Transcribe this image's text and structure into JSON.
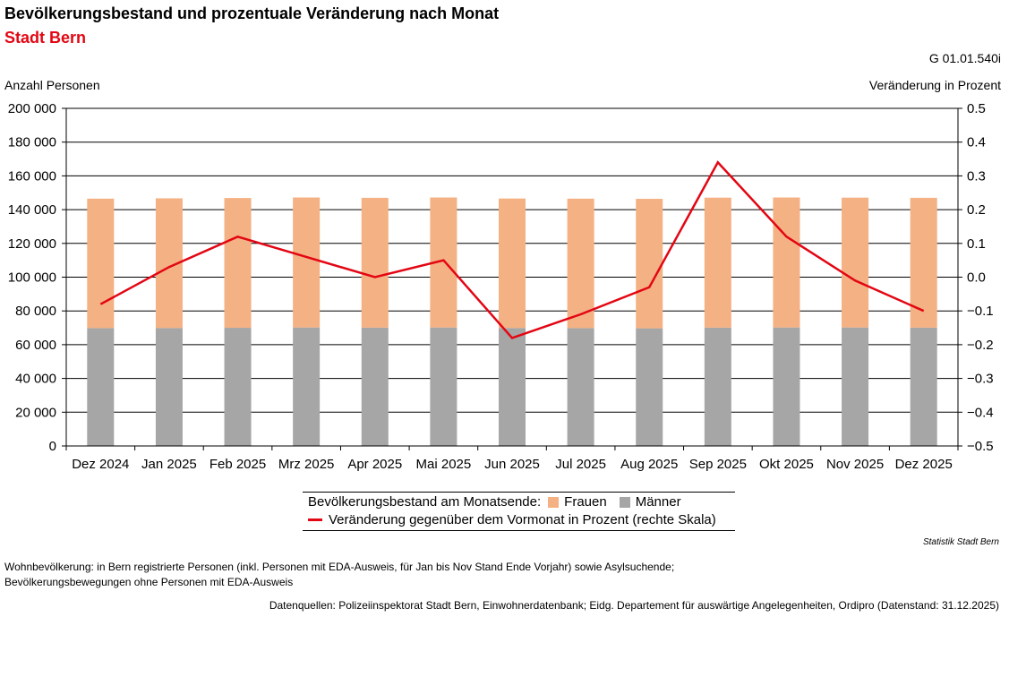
{
  "header": {
    "title": "Bevölkerungsbestand und prozentuale Veränderung nach Monat",
    "subtitle": "Stadt Bern",
    "code": "G 01.01.540i"
  },
  "colors": {
    "frauen": "#f4b183",
    "maenner": "#a6a6a6",
    "line": "#e30613",
    "grid": "#000000"
  },
  "legend": {
    "bestand_label": "Bevölkerungsbestand am Monatsende:",
    "frauen": "Frauen",
    "maenner": "Männer",
    "line": "Veränderung gegenüber dem Vormonat in Prozent (rechte Skala)"
  },
  "footer": {
    "brand": "Statistik Stadt Bern",
    "note_line1": "Wohnbevölkerung: in Bern registrierte Personen (inkl. Personen mit EDA-Ausweis, für Jan bis Nov Stand Ende Vorjahr) sowie Asylsuchende;",
    "note_line2": "Bevölkerungsbewegungen ohne Personen mit EDA-Ausweis",
    "sources": "Datenquellen: Polizeiinspektorat Stadt Bern, Einwohnerdatenbank; Eidg. Departement für auswärtige Angelegenheiten, Ordipro (Datenstand: 31.12.2025)"
  },
  "chart_data": {
    "type": "bar",
    "stacked": true,
    "title": "Bevölkerungsbestand und prozentuale Veränderung nach Monat",
    "ylabel": "Anzahl Personen",
    "y2label": "Veränderung in Prozent",
    "ylim": [
      0,
      200000
    ],
    "y2lim": [
      -0.5,
      0.5
    ],
    "yticks": [
      0,
      20000,
      40000,
      60000,
      80000,
      100000,
      120000,
      140000,
      160000,
      180000,
      200000
    ],
    "ytick_labels": [
      "0",
      "20 000",
      "40 000",
      "60 000",
      "80 000",
      "100 000",
      "120 000",
      "140 000",
      "160 000",
      "180 000",
      "200 000"
    ],
    "y2ticks": [
      -0.5,
      -0.4,
      -0.3,
      -0.2,
      -0.1,
      0.0,
      0.1,
      0.2,
      0.3,
      0.4,
      0.5
    ],
    "y2tick_labels": [
      "−0.5",
      "−0.4",
      "−0.3",
      "−0.2",
      "−0.1",
      "0.0",
      "0.1",
      "0.2",
      "0.3",
      "0.4",
      "0.5"
    ],
    "categories": [
      "Dez 2024",
      "Jan 2025",
      "Feb 2025",
      "Mrz 2025",
      "Apr 2025",
      "Mai 2025",
      "Jun 2025",
      "Jul 2025",
      "Aug 2025",
      "Sep 2025",
      "Okt 2025",
      "Nov 2025",
      "Dez 2025"
    ],
    "series": [
      {
        "name": "Männer",
        "type": "bar",
        "values": [
          69800,
          69900,
          70000,
          70200,
          70100,
          70200,
          69900,
          69800,
          69700,
          70100,
          70200,
          70200,
          70100
        ]
      },
      {
        "name": "Frauen",
        "type": "bar",
        "values": [
          76700,
          76800,
          76900,
          77000,
          76900,
          77000,
          76700,
          76700,
          76700,
          77000,
          77000,
          76900,
          76900
        ]
      },
      {
        "name": "Veränderung gegenüber dem Vormonat in Prozent (rechte Skala)",
        "type": "line",
        "axis": "right",
        "values": [
          -0.08,
          0.03,
          0.12,
          0.06,
          0.0,
          0.05,
          -0.18,
          -0.11,
          -0.03,
          0.34,
          0.12,
          -0.01,
          -0.1
        ]
      }
    ],
    "legend_position": "bottom"
  }
}
